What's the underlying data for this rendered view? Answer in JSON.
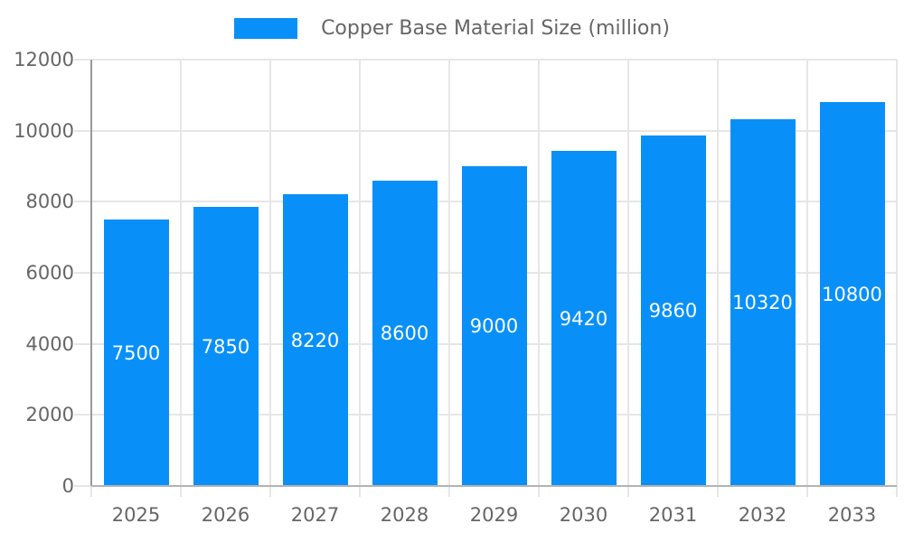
{
  "colors": {
    "background": "#ffffff",
    "bar": "#0990f8",
    "axis_text": "#666666",
    "bar_label_text": "#ffffff",
    "grid": "#e6e6e6",
    "y_axis_line": "#999999",
    "x_axis_line": "#b3b3b3"
  },
  "legend": {
    "position": "top-center",
    "items": [
      {
        "label": "Copper Base Material Size (million)",
        "swatch_color": "#0990f8"
      }
    ]
  },
  "chart_data": {
    "type": "bar",
    "title": "",
    "xlabel": "",
    "ylabel": "",
    "categories": [
      "2025",
      "2026",
      "2027",
      "2028",
      "2029",
      "2030",
      "2031",
      "2032",
      "2033"
    ],
    "series": [
      {
        "name": "Copper Base Material Size (million)",
        "color": "#0990f8",
        "values": [
          7500,
          7850,
          8220,
          8600,
          9000,
          9420,
          9860,
          10320,
          10800
        ]
      }
    ],
    "data_labels": {
      "visible": true,
      "position": "inside-center",
      "color": "#ffffff"
    },
    "ylim": [
      0,
      12000
    ],
    "yticks": [
      0,
      2000,
      4000,
      6000,
      8000,
      10000,
      12000
    ],
    "grid": true,
    "legend_position": "top"
  }
}
